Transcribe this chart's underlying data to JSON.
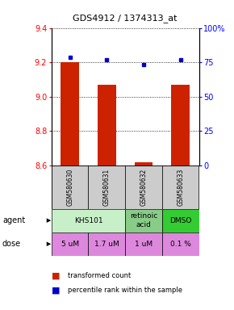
{
  "title": "GDS4912 / 1374313_at",
  "samples": [
    "GSM580630",
    "GSM580631",
    "GSM580632",
    "GSM580633"
  ],
  "bar_values": [
    9.2,
    9.07,
    8.62,
    9.07
  ],
  "bar_base": 8.6,
  "dot_values": [
    9.23,
    9.215,
    9.185,
    9.215
  ],
  "ylim": [
    8.6,
    9.4
  ],
  "y_ticks": [
    8.6,
    8.8,
    9.0,
    9.2,
    9.4
  ],
  "y2_ticks": [
    0,
    25,
    50,
    75,
    100
  ],
  "bar_color": "#cc2200",
  "dot_color": "#0000cc",
  "agent_configs": [
    [
      0,
      1,
      "KHS101",
      "#c8f0c8"
    ],
    [
      2,
      2,
      "retinoic\nacid",
      "#88cc88"
    ],
    [
      3,
      3,
      "DMSO",
      "#33cc33"
    ]
  ],
  "dose_labels": [
    "5 uM",
    "1.7 uM",
    "1 uM",
    "0.1 %"
  ],
  "dose_color": "#dd88dd",
  "sample_box_color": "#cccccc",
  "legend_bar_label": "transformed count",
  "legend_dot_label": "percentile rank within the sample",
  "bar_width": 0.5,
  "x_positions": [
    0,
    1,
    2,
    3
  ]
}
